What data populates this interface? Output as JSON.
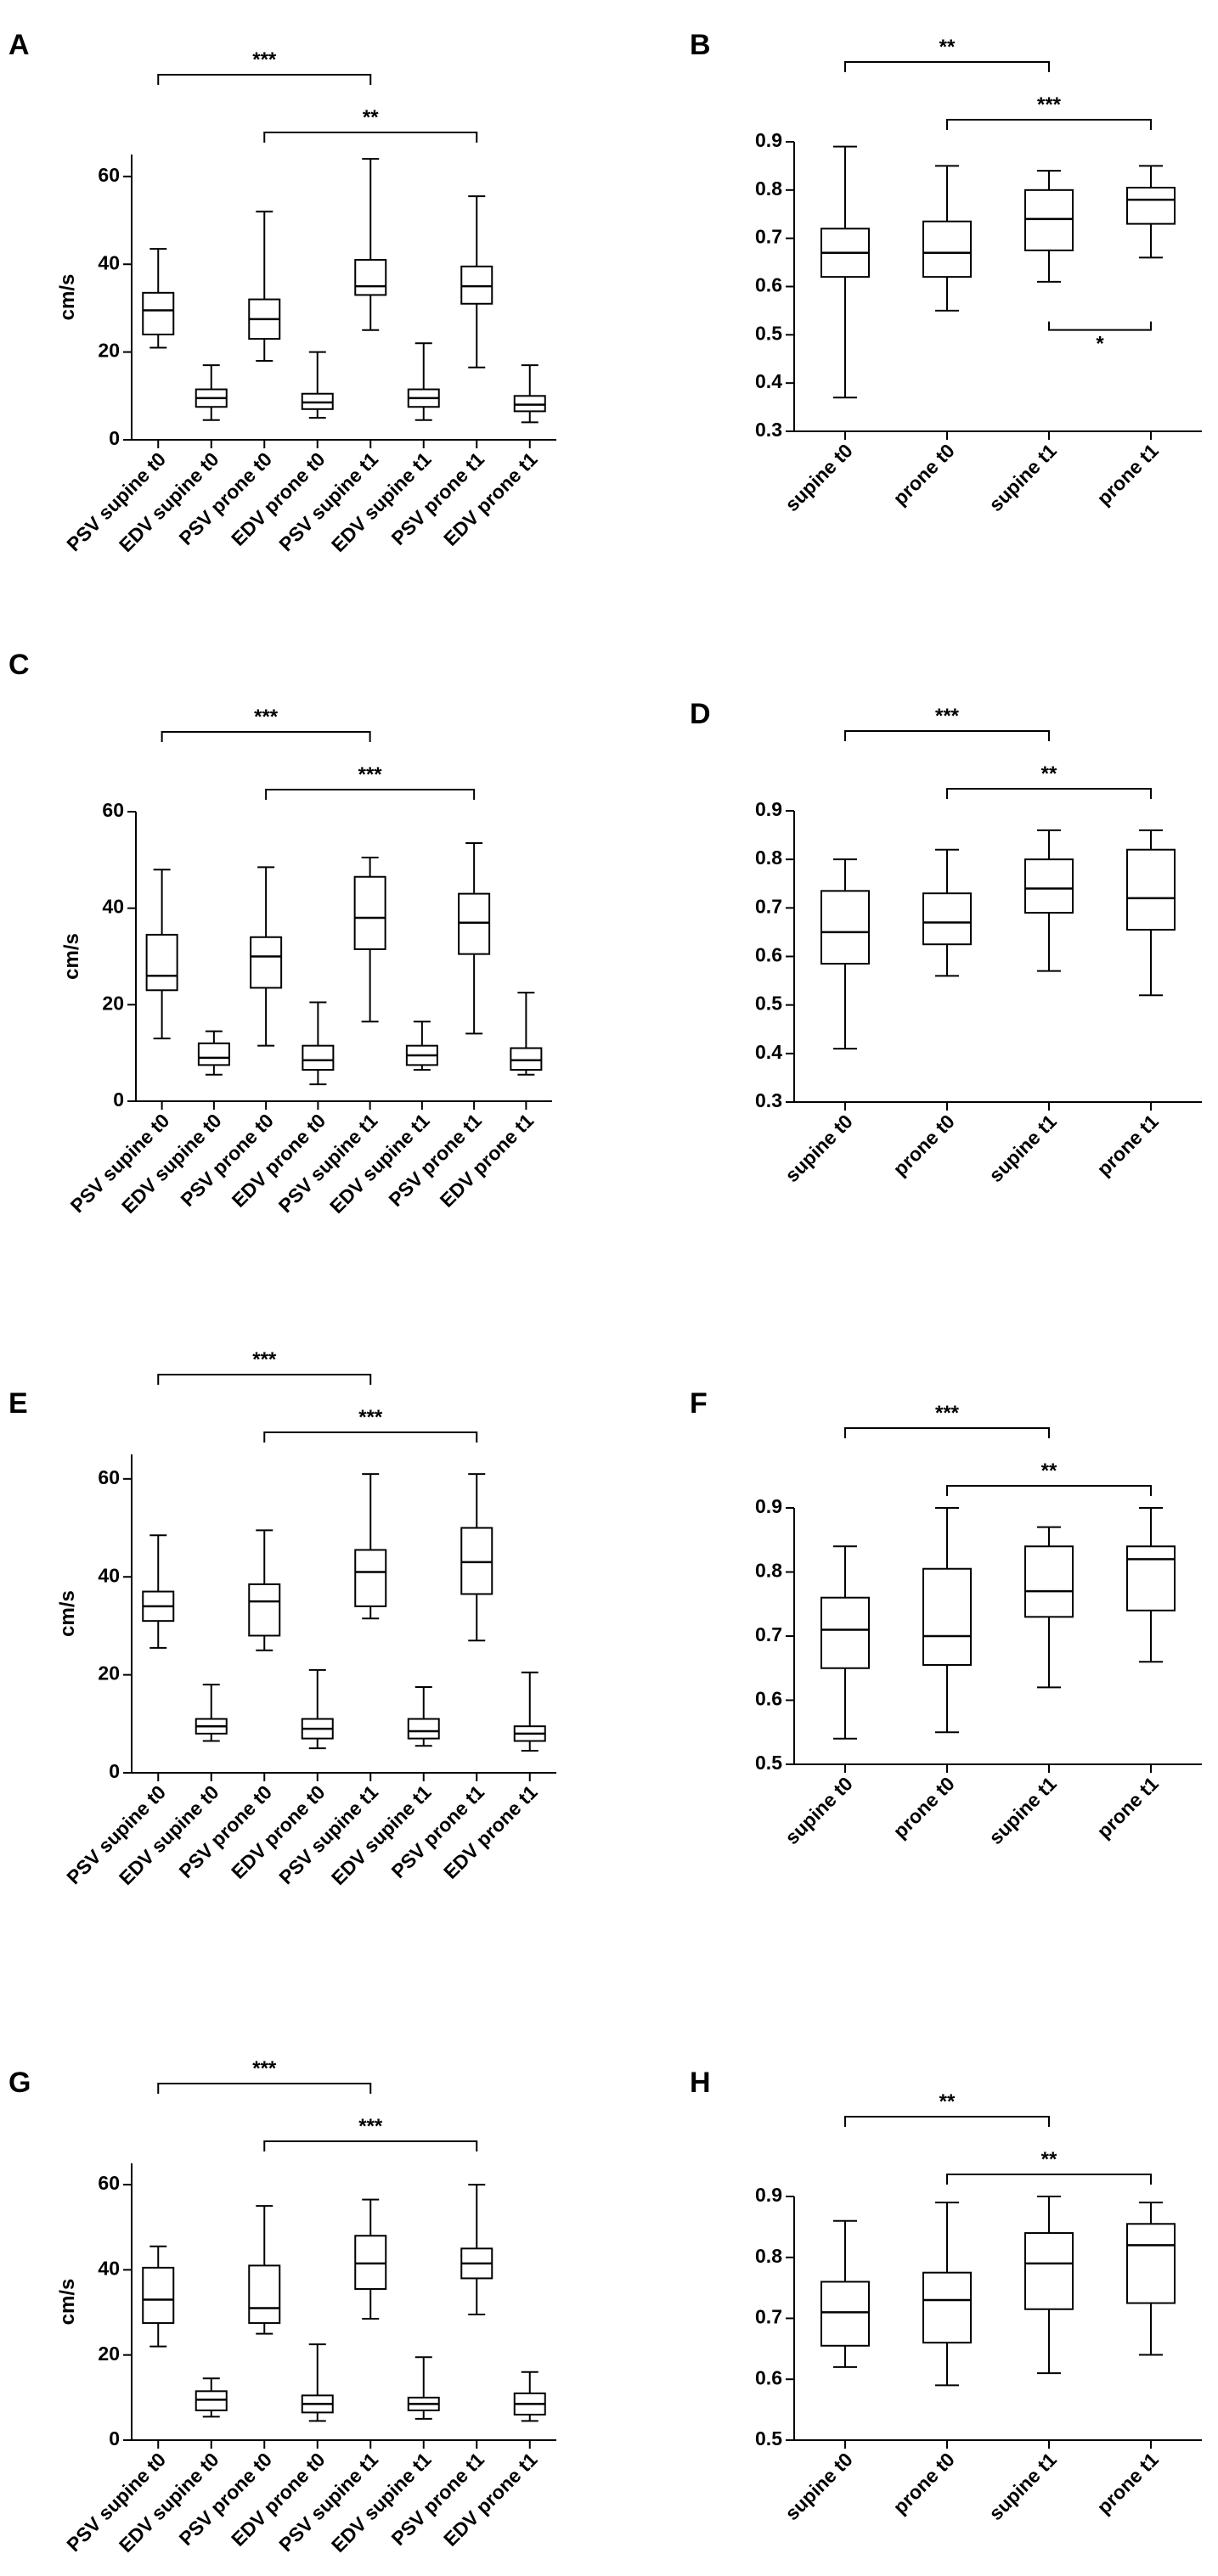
{
  "figure": {
    "colors": {
      "ink": "#000000",
      "background": "#ffffff"
    },
    "panels": [
      "A",
      "B",
      "C",
      "D",
      "E",
      "F",
      "G",
      "H"
    ]
  },
  "chart_data": [
    {
      "panel": "A",
      "type": "box",
      "ylabel": "cm/s",
      "ylim": [
        0,
        65
      ],
      "yticks": [
        0,
        20,
        40,
        60
      ],
      "categories": [
        "PSV supine t0",
        "EDV supine t0",
        "PSV prone t0",
        "EDV prone t0",
        "PSV supine t1",
        "EDV supine t1",
        "PSV prone t1",
        "EDV prone t1"
      ],
      "boxes": [
        {
          "min": 21,
          "q1": 24,
          "median": 29.5,
          "q3": 33.5,
          "max": 43.5
        },
        {
          "min": 4.5,
          "q1": 7.5,
          "median": 9.5,
          "q3": 11.5,
          "max": 17
        },
        {
          "min": 18,
          "q1": 23,
          "median": 27.5,
          "q3": 32,
          "max": 52
        },
        {
          "min": 5,
          "q1": 7,
          "median": 8.5,
          "q3": 10.5,
          "max": 20
        },
        {
          "min": 25,
          "q1": 33,
          "median": 35,
          "q3": 41,
          "max": 64
        },
        {
          "min": 4.5,
          "q1": 7.5,
          "median": 9.5,
          "q3": 11.5,
          "max": 22
        },
        {
          "min": 16.5,
          "q1": 31,
          "median": 35,
          "q3": 39.5,
          "max": 55.5
        },
        {
          "min": 4,
          "q1": 6.5,
          "median": 8,
          "q3": 10,
          "max": 17
        }
      ],
      "comparisons": [
        {
          "from": 1,
          "to": 5,
          "label": "***"
        },
        {
          "from": 3,
          "to": 7,
          "label": "**"
        }
      ]
    },
    {
      "panel": "B",
      "type": "box",
      "ylabel": "",
      "ylim": [
        0.3,
        0.9
      ],
      "yticks": [
        "0.3",
        "0.4",
        "0.5",
        "0.6",
        "0.7",
        "0.8",
        "0.9"
      ],
      "categories": [
        "supine t0",
        "prone t0",
        "supine t1",
        "prone t1"
      ],
      "boxes": [
        {
          "min": 0.37,
          "q1": 0.62,
          "median": 0.67,
          "q3": 0.72,
          "max": 0.89
        },
        {
          "min": 0.55,
          "q1": 0.62,
          "median": 0.67,
          "q3": 0.735,
          "max": 0.85
        },
        {
          "min": 0.61,
          "q1": 0.675,
          "median": 0.74,
          "q3": 0.8,
          "max": 0.84
        },
        {
          "min": 0.66,
          "q1": 0.73,
          "median": 0.78,
          "q3": 0.805,
          "max": 0.85
        }
      ],
      "comparisons": [
        {
          "from": 1,
          "to": 3,
          "label": "**"
        },
        {
          "from": 2,
          "to": 4,
          "label": "***"
        },
        {
          "from": 3,
          "to": 4,
          "label": "*",
          "below": true
        }
      ]
    },
    {
      "panel": "C",
      "type": "box",
      "ylabel": "cm/s",
      "ylim": [
        0,
        60
      ],
      "yticks": [
        0,
        20,
        40,
        60
      ],
      "categories": [
        "PSV supine t0",
        "EDV supine t0",
        "PSV prone t0",
        "EDV prone t0",
        "PSV supine t1",
        "EDV supine t1",
        "PSV prone t1",
        "EDV prone t1"
      ],
      "boxes": [
        {
          "min": 13,
          "q1": 23,
          "median": 26,
          "q3": 34.5,
          "max": 48
        },
        {
          "min": 5.5,
          "q1": 7.5,
          "median": 9,
          "q3": 12,
          "max": 14.5
        },
        {
          "min": 11.5,
          "q1": 23.5,
          "median": 30,
          "q3": 34,
          "max": 48.5
        },
        {
          "min": 3.5,
          "q1": 6.5,
          "median": 8.5,
          "q3": 11.5,
          "max": 20.5
        },
        {
          "min": 16.5,
          "q1": 31.5,
          "median": 38,
          "q3": 46.5,
          "max": 50.5
        },
        {
          "min": 6.5,
          "q1": 7.5,
          "median": 9.5,
          "q3": 11.5,
          "max": 16.5
        },
        {
          "min": 14,
          "q1": 30.5,
          "median": 37,
          "q3": 43,
          "max": 53.5
        },
        {
          "min": 5.5,
          "q1": 6.5,
          "median": 8.5,
          "q3": 11,
          "max": 22.5
        }
      ],
      "comparisons": [
        {
          "from": 1,
          "to": 5,
          "label": "***"
        },
        {
          "from": 3,
          "to": 7,
          "label": "***"
        }
      ]
    },
    {
      "panel": "D",
      "type": "box",
      "ylabel": "",
      "ylim": [
        0.3,
        0.9
      ],
      "yticks": [
        "0.3",
        "0.4",
        "0.5",
        "0.6",
        "0.7",
        "0.8",
        "0.9"
      ],
      "categories": [
        "supine t0",
        "prone t0",
        "supine t1",
        "prone t1"
      ],
      "boxes": [
        {
          "min": 0.41,
          "q1": 0.585,
          "median": 0.65,
          "q3": 0.735,
          "max": 0.8
        },
        {
          "min": 0.56,
          "q1": 0.625,
          "median": 0.67,
          "q3": 0.73,
          "max": 0.82
        },
        {
          "min": 0.57,
          "q1": 0.69,
          "median": 0.74,
          "q3": 0.8,
          "max": 0.86
        },
        {
          "min": 0.52,
          "q1": 0.655,
          "median": 0.72,
          "q3": 0.82,
          "max": 0.86
        }
      ],
      "comparisons": [
        {
          "from": 1,
          "to": 3,
          "label": "***"
        },
        {
          "from": 2,
          "to": 4,
          "label": "**"
        }
      ]
    },
    {
      "panel": "E",
      "type": "box",
      "ylabel": "cm/s",
      "ylim": [
        0,
        65
      ],
      "yticks": [
        0,
        20,
        40,
        60
      ],
      "categories": [
        "PSV supine t0",
        "EDV supine t0",
        "PSV prone t0",
        "EDV prone t0",
        "PSV supine t1",
        "EDV supine t1",
        "PSV prone t1",
        "EDV prone t1"
      ],
      "boxes": [
        {
          "min": 25.5,
          "q1": 31,
          "median": 34,
          "q3": 37,
          "max": 48.5
        },
        {
          "min": 6.5,
          "q1": 8,
          "median": 9.5,
          "q3": 11,
          "max": 18
        },
        {
          "min": 25,
          "q1": 28,
          "median": 35,
          "q3": 38.5,
          "max": 49.5
        },
        {
          "min": 5,
          "q1": 7,
          "median": 9,
          "q3": 11,
          "max": 21
        },
        {
          "min": 31.5,
          "q1": 34,
          "median": 41,
          "q3": 45.5,
          "max": 61
        },
        {
          "min": 5.5,
          "q1": 7,
          "median": 8.5,
          "q3": 11,
          "max": 17.5
        },
        {
          "min": 27,
          "q1": 36.5,
          "median": 43,
          "q3": 50,
          "max": 61
        },
        {
          "min": 4.5,
          "q1": 6.5,
          "median": 8,
          "q3": 9.5,
          "max": 20.5
        }
      ],
      "comparisons": [
        {
          "from": 1,
          "to": 5,
          "label": "***"
        },
        {
          "from": 3,
          "to": 7,
          "label": "***"
        }
      ]
    },
    {
      "panel": "F",
      "type": "box",
      "ylabel": "",
      "ylim": [
        0.5,
        0.9
      ],
      "yticks": [
        "0.5",
        "0.6",
        "0.7",
        "0.8",
        "0.9"
      ],
      "categories": [
        "supine t0",
        "prone t0",
        "supine t1",
        "prone t1"
      ],
      "boxes": [
        {
          "min": 0.54,
          "q1": 0.65,
          "median": 0.71,
          "q3": 0.76,
          "max": 0.84
        },
        {
          "min": 0.55,
          "q1": 0.655,
          "median": 0.7,
          "q3": 0.805,
          "max": 0.9
        },
        {
          "min": 0.62,
          "q1": 0.73,
          "median": 0.77,
          "q3": 0.84,
          "max": 0.87
        },
        {
          "min": 0.66,
          "q1": 0.74,
          "median": 0.82,
          "q3": 0.84,
          "max": 0.9
        }
      ],
      "comparisons": [
        {
          "from": 1,
          "to": 3,
          "label": "***"
        },
        {
          "from": 2,
          "to": 4,
          "label": "**"
        }
      ]
    },
    {
      "panel": "G",
      "type": "box",
      "ylabel": "cm/s",
      "ylim": [
        0,
        65
      ],
      "yticks": [
        0,
        20,
        40,
        60
      ],
      "categories": [
        "PSV supine t0",
        "EDV supine t0",
        "PSV prone t0",
        "EDV prone t0",
        "PSV supine t1",
        "EDV supine t1",
        "PSV prone t1",
        "EDV prone t1"
      ],
      "boxes": [
        {
          "min": 22,
          "q1": 27.5,
          "median": 33,
          "q3": 40.5,
          "max": 45.5
        },
        {
          "min": 5.5,
          "q1": 7,
          "median": 9.5,
          "q3": 11.5,
          "max": 14.5
        },
        {
          "min": 25,
          "q1": 27.5,
          "median": 31,
          "q3": 41,
          "max": 55
        },
        {
          "min": 4.5,
          "q1": 6.5,
          "median": 8.5,
          "q3": 10.5,
          "max": 22.5
        },
        {
          "min": 28.5,
          "q1": 35.5,
          "median": 41.5,
          "q3": 48,
          "max": 56.5
        },
        {
          "min": 5,
          "q1": 7,
          "median": 8.5,
          "q3": 10,
          "max": 19.5
        },
        {
          "min": 29.5,
          "q1": 38,
          "median": 41.5,
          "q3": 45,
          "max": 60
        },
        {
          "min": 4.5,
          "q1": 6,
          "median": 8.5,
          "q3": 11,
          "max": 16
        }
      ],
      "comparisons": [
        {
          "from": 1,
          "to": 5,
          "label": "***"
        },
        {
          "from": 3,
          "to": 7,
          "label": "***"
        }
      ]
    },
    {
      "panel": "H",
      "type": "box",
      "ylabel": "",
      "ylim": [
        0.5,
        0.9
      ],
      "yticks": [
        "0.5",
        "0.6",
        "0.7",
        "0.8",
        "0.9"
      ],
      "categories": [
        "supine t0",
        "prone t0",
        "supine t1",
        "prone t1"
      ],
      "boxes": [
        {
          "min": 0.62,
          "q1": 0.655,
          "median": 0.71,
          "q3": 0.76,
          "max": 0.86
        },
        {
          "min": 0.59,
          "q1": 0.66,
          "median": 0.73,
          "q3": 0.775,
          "max": 0.89
        },
        {
          "min": 0.61,
          "q1": 0.715,
          "median": 0.79,
          "q3": 0.84,
          "max": 0.9
        },
        {
          "min": 0.64,
          "q1": 0.725,
          "median": 0.82,
          "q3": 0.855,
          "max": 0.89
        }
      ],
      "comparisons": [
        {
          "from": 1,
          "to": 3,
          "label": "**"
        },
        {
          "from": 2,
          "to": 4,
          "label": "**"
        }
      ]
    }
  ]
}
